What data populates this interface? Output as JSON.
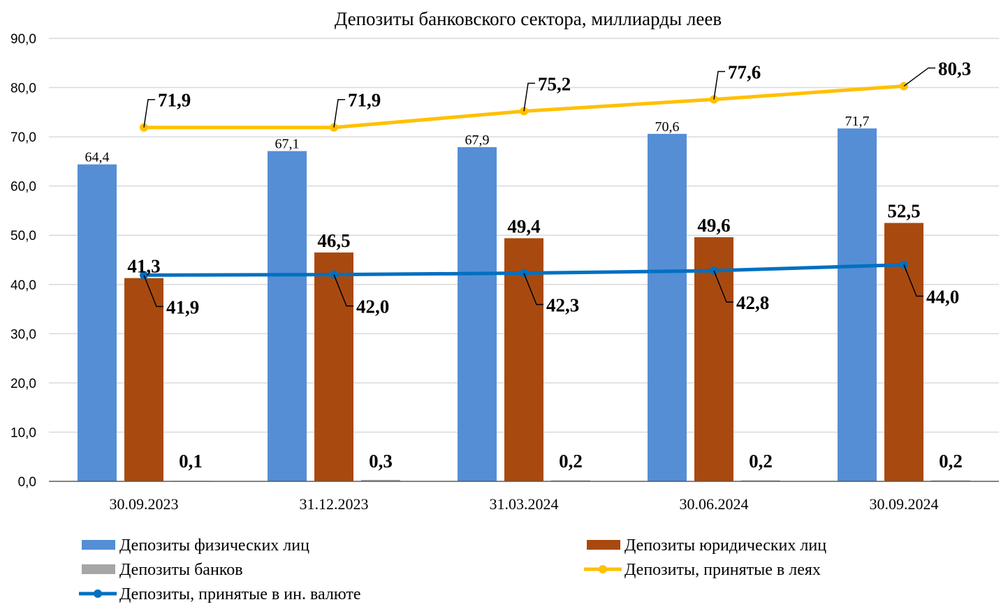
{
  "chart_data": {
    "type": "bar",
    "title": "Депозиты банковского сектора, миллиарды леев",
    "xlabel": "",
    "ylabel": "",
    "ylim": [
      0,
      90
    ],
    "yticks": [
      "0,0",
      "10,0",
      "20,0",
      "30,0",
      "40,0",
      "50,0",
      "60,0",
      "70,0",
      "80,0",
      "90,0"
    ],
    "grid": true,
    "legend_position": "bottom",
    "categories": [
      "30.09.2023",
      "31.12.2023",
      "31.03.2024",
      "30.06.2024",
      "30.09.2024"
    ],
    "series": [
      {
        "name": "Депозиты физических лиц",
        "kind": "bar",
        "color": "#558ED5",
        "values": [
          64.4,
          67.1,
          67.9,
          70.6,
          71.7
        ],
        "labels": [
          "64,4",
          "67,1",
          "67,9",
          "70,6",
          "71,7"
        ]
      },
      {
        "name": "Депозиты юридических лиц",
        "kind": "bar",
        "color": "#A84A0F",
        "values": [
          41.3,
          46.5,
          49.4,
          49.6,
          52.5
        ],
        "labels": [
          "41,3",
          "46,5",
          "49,4",
          "49,6",
          "52,5"
        ]
      },
      {
        "name": "Депозиты банков",
        "kind": "bar",
        "color": "#A6A6A6",
        "values": [
          0.1,
          0.3,
          0.2,
          0.2,
          0.2
        ],
        "labels": [
          "0,1",
          "0,3",
          "0,2",
          "0,2",
          "0,2"
        ]
      },
      {
        "name": "Депозиты, принятые в леях",
        "kind": "line",
        "color": "#FFC000",
        "values": [
          71.9,
          71.9,
          75.2,
          77.6,
          80.3
        ],
        "labels": [
          "71,9",
          "71,9",
          "75,2",
          "77,6",
          "80,3"
        ]
      },
      {
        "name": "Депозиты, принятые в ин. валюте",
        "kind": "line",
        "color": "#0070C0",
        "values": [
          41.9,
          42.0,
          42.3,
          42.8,
          44.0
        ],
        "labels": [
          "41,9",
          "42,0",
          "42,3",
          "42,8",
          "44,0"
        ]
      }
    ]
  }
}
